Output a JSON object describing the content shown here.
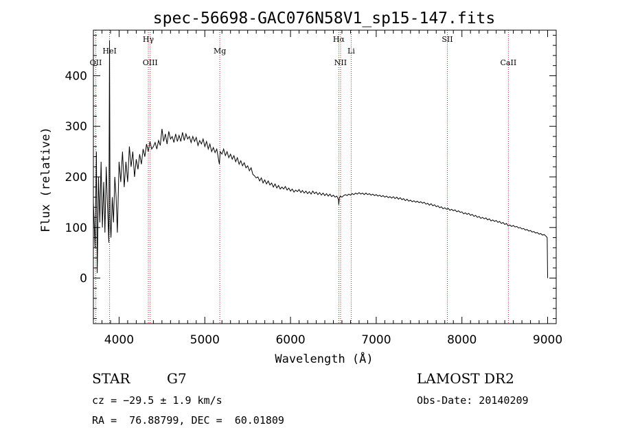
{
  "chart_data": {
    "type": "line",
    "title": "spec-56698-GAC076N58V1_sp15-147.fits",
    "xlabel": "Wavelength (Å)",
    "ylabel": "Flux (relative)",
    "xlim": [
      3700,
      9100
    ],
    "ylim": [
      -90,
      490
    ],
    "x_ticks": [
      4000,
      5000,
      6000,
      7000,
      8000,
      9000
    ],
    "y_ticks": [
      0,
      100,
      200,
      300,
      400
    ],
    "grid": false,
    "series": [
      {
        "color": "#000000",
        "points": [
          [
            3700,
            150
          ],
          [
            3720,
            60
          ],
          [
            3735,
            250
          ],
          [
            3745,
            10
          ],
          [
            3760,
            200
          ],
          [
            3775,
            110
          ],
          [
            3790,
            230
          ],
          [
            3805,
            100
          ],
          [
            3820,
            190
          ],
          [
            3835,
            90
          ],
          [
            3850,
            220
          ],
          [
            3865,
            140
          ],
          [
            3880,
            70
          ],
          [
            3888,
            470
          ],
          [
            3895,
            120
          ],
          [
            3905,
            80
          ],
          [
            3920,
            160
          ],
          [
            3935,
            110
          ],
          [
            3950,
            200
          ],
          [
            3965,
            160
          ],
          [
            3980,
            90
          ],
          [
            4000,
            230
          ],
          [
            4020,
            190
          ],
          [
            4040,
            250
          ],
          [
            4060,
            180
          ],
          [
            4080,
            230
          ],
          [
            4100,
            190
          ],
          [
            4120,
            260
          ],
          [
            4140,
            220
          ],
          [
            4160,
            250
          ],
          [
            4180,
            200
          ],
          [
            4200,
            235
          ],
          [
            4220,
            215
          ],
          [
            4240,
            245
          ],
          [
            4260,
            225
          ],
          [
            4280,
            255
          ],
          [
            4300,
            240
          ],
          [
            4320,
            265
          ],
          [
            4340,
            250
          ],
          [
            4360,
            270
          ],
          [
            4380,
            255
          ],
          [
            4400,
            260
          ],
          [
            4420,
            268
          ],
          [
            4440,
            255
          ],
          [
            4460,
            272
          ],
          [
            4480,
            262
          ],
          [
            4500,
            295
          ],
          [
            4520,
            270
          ],
          [
            4540,
            285
          ],
          [
            4560,
            265
          ],
          [
            4580,
            290
          ],
          [
            4600,
            275
          ],
          [
            4620,
            280
          ],
          [
            4640,
            268
          ],
          [
            4660,
            285
          ],
          [
            4680,
            270
          ],
          [
            4700,
            282
          ],
          [
            4720,
            270
          ],
          [
            4740,
            288
          ],
          [
            4760,
            272
          ],
          [
            4780,
            285
          ],
          [
            4800,
            275
          ],
          [
            4820,
            280
          ],
          [
            4840,
            268
          ],
          [
            4860,
            280
          ],
          [
            4880,
            270
          ],
          [
            4900,
            278
          ],
          [
            4920,
            262
          ],
          [
            4940,
            272
          ],
          [
            4960,
            265
          ],
          [
            4980,
            275
          ],
          [
            5000,
            260
          ],
          [
            5020,
            270
          ],
          [
            5040,
            255
          ],
          [
            5060,
            265
          ],
          [
            5080,
            250
          ],
          [
            5100,
            258
          ],
          [
            5120,
            248
          ],
          [
            5140,
            255
          ],
          [
            5160,
            235
          ],
          [
            5170,
            225
          ],
          [
            5180,
            250
          ],
          [
            5200,
            245
          ],
          [
            5220,
            255
          ],
          [
            5240,
            242
          ],
          [
            5260,
            250
          ],
          [
            5280,
            238
          ],
          [
            5300,
            245
          ],
          [
            5320,
            235
          ],
          [
            5340,
            242
          ],
          [
            5360,
            230
          ],
          [
            5380,
            238
          ],
          [
            5400,
            225
          ],
          [
            5420,
            232
          ],
          [
            5440,
            222
          ],
          [
            5460,
            228
          ],
          [
            5480,
            218
          ],
          [
            5500,
            222
          ],
          [
            5520,
            212
          ],
          [
            5540,
            218
          ],
          [
            5560,
            205
          ],
          [
            5580,
            202
          ],
          [
            5600,
            198
          ],
          [
            5620,
            200
          ],
          [
            5640,
            192
          ],
          [
            5660,
            198
          ],
          [
            5680,
            188
          ],
          [
            5700,
            194
          ],
          [
            5720,
            186
          ],
          [
            5740,
            192
          ],
          [
            5760,
            184
          ],
          [
            5780,
            188
          ],
          [
            5800,
            180
          ],
          [
            5820,
            186
          ],
          [
            5840,
            178
          ],
          [
            5860,
            183
          ],
          [
            5880,
            176
          ],
          [
            5900,
            180
          ],
          [
            5920,
            176
          ],
          [
            5940,
            181
          ],
          [
            5960,
            174
          ],
          [
            5980,
            178
          ],
          [
            6000,
            172
          ],
          [
            6020,
            176
          ],
          [
            6040,
            170
          ],
          [
            6060,
            174
          ],
          [
            6080,
            171
          ],
          [
            6100,
            175
          ],
          [
            6120,
            169
          ],
          [
            6140,
            173
          ],
          [
            6160,
            168
          ],
          [
            6180,
            172
          ],
          [
            6200,
            167
          ],
          [
            6220,
            171
          ],
          [
            6240,
            166
          ],
          [
            6260,
            172
          ],
          [
            6280,
            167
          ],
          [
            6300,
            170
          ],
          [
            6320,
            165
          ],
          [
            6340,
            169
          ],
          [
            6360,
            164
          ],
          [
            6380,
            168
          ],
          [
            6400,
            163
          ],
          [
            6420,
            167
          ],
          [
            6440,
            162
          ],
          [
            6460,
            166
          ],
          [
            6480,
            161
          ],
          [
            6500,
            164
          ],
          [
            6520,
            160
          ],
          [
            6540,
            162
          ],
          [
            6560,
            155
          ],
          [
            6563,
            145
          ],
          [
            6570,
            158
          ],
          [
            6580,
            162
          ],
          [
            6600,
            160
          ],
          [
            6620,
            163
          ],
          [
            6640,
            165
          ],
          [
            6660,
            163
          ],
          [
            6680,
            166
          ],
          [
            6700,
            164
          ],
          [
            6720,
            167
          ],
          [
            6740,
            165
          ],
          [
            6760,
            168
          ],
          [
            6780,
            166
          ],
          [
            6800,
            169
          ],
          [
            6820,
            166
          ],
          [
            6840,
            168
          ],
          [
            6860,
            165
          ],
          [
            6880,
            168
          ],
          [
            6900,
            165
          ],
          [
            6920,
            167
          ],
          [
            6940,
            164
          ],
          [
            6960,
            166
          ],
          [
            6980,
            163
          ],
          [
            7000,
            165
          ],
          [
            7020,
            162
          ],
          [
            7040,
            164
          ],
          [
            7060,
            161
          ],
          [
            7080,
            163
          ],
          [
            7100,
            160
          ],
          [
            7120,
            162
          ],
          [
            7140,
            159
          ],
          [
            7160,
            161
          ],
          [
            7180,
            158
          ],
          [
            7200,
            161
          ],
          [
            7220,
            157
          ],
          [
            7240,
            160
          ],
          [
            7260,
            156
          ],
          [
            7280,
            159
          ],
          [
            7300,
            155
          ],
          [
            7320,
            157
          ],
          [
            7340,
            153
          ],
          [
            7360,
            156
          ],
          [
            7380,
            152
          ],
          [
            7400,
            154
          ],
          [
            7420,
            151
          ],
          [
            7440,
            153
          ],
          [
            7460,
            150
          ],
          [
            7480,
            152
          ],
          [
            7500,
            149
          ],
          [
            7520,
            151
          ],
          [
            7540,
            148
          ],
          [
            7560,
            150
          ],
          [
            7580,
            146
          ],
          [
            7600,
            148
          ],
          [
            7620,
            144
          ],
          [
            7640,
            147
          ],
          [
            7660,
            143
          ],
          [
            7680,
            145
          ],
          [
            7700,
            141
          ],
          [
            7720,
            143
          ],
          [
            7740,
            139
          ],
          [
            7760,
            141
          ],
          [
            7780,
            137
          ],
          [
            7800,
            139
          ],
          [
            7820,
            136
          ],
          [
            7840,
            138
          ],
          [
            7860,
            134
          ],
          [
            7880,
            136
          ],
          [
            7900,
            133
          ],
          [
            7920,
            135
          ],
          [
            7940,
            131
          ],
          [
            7960,
            133
          ],
          [
            7980,
            130
          ],
          [
            8000,
            131
          ],
          [
            8020,
            127
          ],
          [
            8040,
            129
          ],
          [
            8060,
            126
          ],
          [
            8080,
            128
          ],
          [
            8100,
            124
          ],
          [
            8120,
            126
          ],
          [
            8140,
            122
          ],
          [
            8160,
            124
          ],
          [
            8180,
            120
          ],
          [
            8200,
            122
          ],
          [
            8220,
            118
          ],
          [
            8240,
            120
          ],
          [
            8260,
            117
          ],
          [
            8280,
            119
          ],
          [
            8300,
            115
          ],
          [
            8320,
            117
          ],
          [
            8340,
            113
          ],
          [
            8360,
            115
          ],
          [
            8380,
            112
          ],
          [
            8400,
            114
          ],
          [
            8420,
            110
          ],
          [
            8440,
            112
          ],
          [
            8460,
            108
          ],
          [
            8480,
            110
          ],
          [
            8500,
            106
          ],
          [
            8520,
            108
          ],
          [
            8540,
            103
          ],
          [
            8560,
            105
          ],
          [
            8580,
            102
          ],
          [
            8600,
            104
          ],
          [
            8620,
            101
          ],
          [
            8640,
            102
          ],
          [
            8660,
            99
          ],
          [
            8680,
            100
          ],
          [
            8700,
            97
          ],
          [
            8720,
            98
          ],
          [
            8740,
            95
          ],
          [
            8760,
            96
          ],
          [
            8780,
            93
          ],
          [
            8800,
            94
          ],
          [
            8820,
            91
          ],
          [
            8840,
            92
          ],
          [
            8860,
            89
          ],
          [
            8880,
            90
          ],
          [
            8900,
            87
          ],
          [
            8920,
            88
          ],
          [
            8940,
            85
          ],
          [
            8960,
            86
          ],
          [
            8980,
            83
          ],
          [
            8995,
            80
          ],
          [
            9000,
            0
          ]
        ]
      }
    ],
    "line_markers": [
      {
        "label": "OII",
        "wavelength": 3728,
        "row": 3
      },
      {
        "label": "HeI",
        "wavelength": 3889,
        "row": 2
      },
      {
        "label": "Hγ",
        "wavelength": 4341,
        "row": 1
      },
      {
        "label": "OIII",
        "wavelength": 4363,
        "row": 3
      },
      {
        "label": "Mg",
        "wavelength": 5175,
        "row": 2
      },
      {
        "label": "Hα",
        "wavelength": 6563,
        "row": 1
      },
      {
        "label": "NII",
        "wavelength": 6584,
        "row": 3
      },
      {
        "label": "Li",
        "wavelength": 6708,
        "row": 2
      },
      {
        "label": "SII",
        "wavelength": 7830,
        "row": 1
      },
      {
        "label": "CaII",
        "wavelength": 8542,
        "row": 3
      }
    ],
    "marker_color": "#b22222"
  },
  "info": {
    "object_class": "STAR",
    "subclass": "G7",
    "survey": "LAMOST DR2",
    "cz": "cz = −29.5 ± 1.9 km/s",
    "obs_date": "Obs-Date: 20140209",
    "coords": "RA =  76.88799, DEC =  60.01809"
  }
}
